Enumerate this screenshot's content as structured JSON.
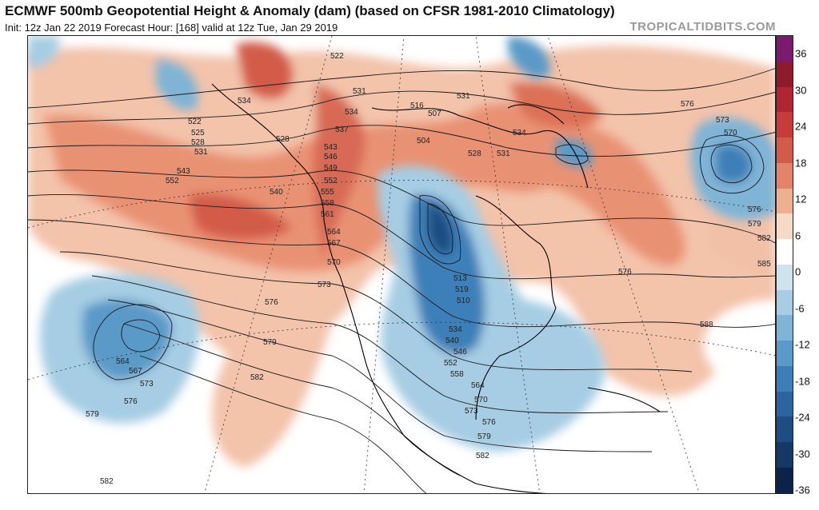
{
  "header": {
    "title": "ECMWF 500mb Geopotential Height & Anomaly (dam) (based on CFSR 1981-2010 Climatology)",
    "subtitle": "Init: 12z Jan 22 2019   Forecast Hour: [168]   valid at 12z Tue, Jan 29 2019",
    "brand": "TROPICALTIDBITS.COM"
  },
  "colorbar": {
    "ticks": [
      "36",
      "30",
      "24",
      "18",
      "12",
      "6",
      "0",
      "-6",
      "-12",
      "-18",
      "-24",
      "-30",
      "-36"
    ],
    "colors": [
      "#7b1a6e",
      "#8e1b2c",
      "#b02531",
      "#c63c3a",
      "#d35b4a",
      "#e2836a",
      "#efb092",
      "#f7d9c8",
      "#ffffff",
      "#cfe3ef",
      "#a6cde3",
      "#7fb4d6",
      "#5a9ac8",
      "#3c7fb8",
      "#2a659f",
      "#1d4d82",
      "#153866",
      "#0c2249"
    ]
  },
  "map": {
    "contour_labels": [
      "522",
      "525",
      "528",
      "531",
      "534",
      "537",
      "540",
      "543",
      "546",
      "549",
      "552",
      "555",
      "558",
      "561",
      "564",
      "567",
      "570",
      "573",
      "576",
      "579",
      "582",
      "585",
      "588",
      "507",
      "504",
      "516",
      "513",
      "519",
      "510"
    ]
  }
}
